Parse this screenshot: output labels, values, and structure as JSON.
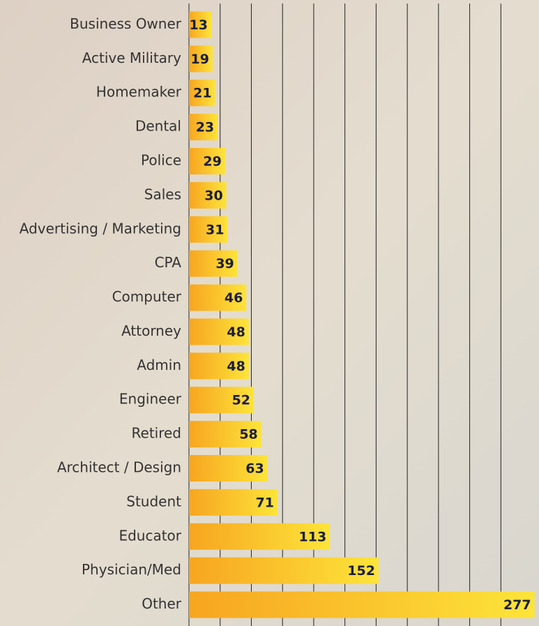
{
  "chart_data": {
    "type": "barh",
    "categories": [
      "Business Owner",
      "Active Military",
      "Homemaker",
      "Dental",
      "Police",
      "Sales",
      "Advertising / Marketing",
      "CPA",
      "Computer",
      "Attorney",
      "Admin",
      "Engineer",
      "Retired",
      "Architect / Design",
      "Student",
      "Educator",
      "Physician/Med",
      "Other"
    ],
    "values": [
      13,
      19,
      21,
      23,
      29,
      30,
      31,
      39,
      46,
      48,
      48,
      52,
      58,
      63,
      71,
      113,
      152,
      277
    ],
    "xlim": [
      0,
      280
    ],
    "xticks": [
      0,
      25,
      50,
      75,
      100,
      125,
      150,
      175,
      200,
      225,
      250
    ],
    "grid": true,
    "color": [
      "#f7a520",
      "#fde43a"
    ]
  }
}
